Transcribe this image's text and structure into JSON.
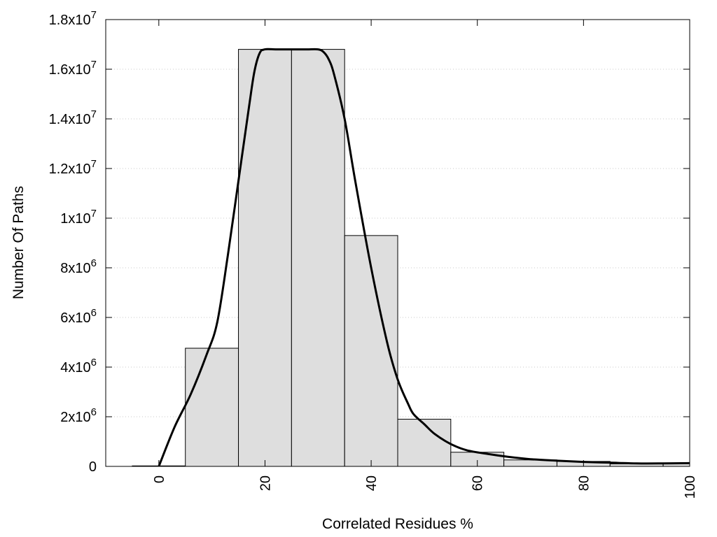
{
  "chart_data": {
    "type": "bar",
    "title": "",
    "xlabel": "Correlated Residues %",
    "ylabel": "Number Of Paths",
    "xlim": [
      -10,
      100
    ],
    "ylim": [
      0,
      18000000
    ],
    "grid": true,
    "x_ticks": [
      {
        "value": 0,
        "label": "0"
      },
      {
        "value": 20,
        "label": "20"
      },
      {
        "value": 40,
        "label": "40"
      },
      {
        "value": 60,
        "label": "60"
      },
      {
        "value": 80,
        "label": "80"
      },
      {
        "value": 100,
        "label": "100"
      }
    ],
    "y_ticks": [
      {
        "value": 0,
        "base": "0",
        "exp": ""
      },
      {
        "value": 2000000,
        "base": "2x10",
        "exp": "6"
      },
      {
        "value": 4000000,
        "base": "4x10",
        "exp": "6"
      },
      {
        "value": 6000000,
        "base": "6x10",
        "exp": "6"
      },
      {
        "value": 8000000,
        "base": "8x10",
        "exp": "6"
      },
      {
        "value": 10000000,
        "base": "1x10",
        "exp": "7"
      },
      {
        "value": 12000000,
        "base": "1.2x10",
        "exp": "7"
      },
      {
        "value": 14000000,
        "base": "1.4x10",
        "exp": "7"
      },
      {
        "value": 16000000,
        "base": "1.6x10",
        "exp": "7"
      },
      {
        "value": 18000000,
        "base": "1.8x10",
        "exp": "7"
      }
    ],
    "bins": [
      {
        "center": 0,
        "width": 10,
        "value": 20000
      },
      {
        "center": 10,
        "width": 10,
        "value": 4760000
      },
      {
        "center": 20,
        "width": 10,
        "value": 16800000
      },
      {
        "center": 30,
        "width": 10,
        "value": 16800000
      },
      {
        "center": 40,
        "width": 10,
        "value": 9300000
      },
      {
        "center": 50,
        "width": 10,
        "value": 1900000
      },
      {
        "center": 60,
        "width": 10,
        "value": 570000
      },
      {
        "center": 70,
        "width": 10,
        "value": 260000
      },
      {
        "center": 80,
        "width": 10,
        "value": 200000
      },
      {
        "center": 90,
        "width": 10,
        "value": 100000
      },
      {
        "center": 100,
        "width": 10,
        "value": 130000
      }
    ],
    "curve": {
      "x": [
        0,
        3,
        6,
        9,
        11,
        13,
        15,
        17,
        18,
        19,
        20,
        22,
        24,
        26,
        28,
        30,
        31,
        32,
        33,
        35,
        37,
        40,
        43,
        45,
        47,
        48,
        50,
        52,
        55,
        58,
        62,
        66,
        70,
        75,
        80,
        85,
        90,
        95,
        100
      ],
      "y": [
        0,
        1600000,
        2900000,
        4500000,
        5800000,
        8500000,
        11500000,
        14500000,
        15900000,
        16650000,
        16800000,
        16800000,
        16800000,
        16800000,
        16800000,
        16800000,
        16700000,
        16400000,
        15800000,
        14000000,
        11500000,
        8000000,
        5000000,
        3500000,
        2500000,
        2100000,
        1700000,
        1300000,
        900000,
        650000,
        500000,
        380000,
        290000,
        230000,
        180000,
        150000,
        120000,
        120000,
        130000
      ]
    },
    "bar_fill": "#dedede",
    "bar_stroke": "#000000",
    "curve_color": "#000000",
    "grid_color": "#c8c8c8"
  }
}
